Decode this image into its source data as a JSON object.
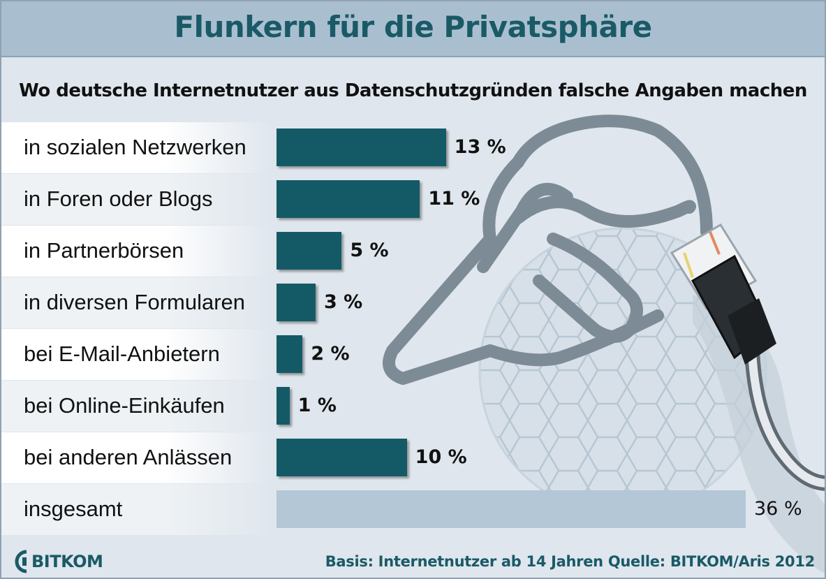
{
  "title": "Flunkern für die Privatsphäre",
  "subtitle": "Wo deutsche Internetnutzer aus Datenschutzgründen falsche Angaben machen",
  "footer": "Basis: Internetnutzer ab 14 Jahren  Quelle: BITKOM/Aris 2012",
  "logo_text": "BITKOM",
  "colors": {
    "bar": "#145a66",
    "total_bar": "#b4c7d6",
    "band_light": "#ffffff",
    "band_dark": "#eef2f5",
    "accent": "#1a5a66"
  },
  "chart_data": {
    "type": "bar",
    "orientation": "horizontal",
    "categories": [
      "in sozialen Netzwerken",
      "in Foren oder Blogs",
      "in Partnerbörsen",
      "in diversen Formularen",
      "bei E-Mail-Anbietern",
      "bei Online-Einkäufen",
      "bei anderen Anlässen",
      "insgesamt"
    ],
    "values": [
      13,
      11,
      5,
      3,
      2,
      1,
      10,
      36
    ],
    "value_labels": [
      "13 %",
      "11 %",
      "5 %",
      "3 %",
      "2 %",
      "1 %",
      "10 %",
      "36 %"
    ],
    "unit": "%",
    "xlim": [
      0,
      36
    ]
  }
}
